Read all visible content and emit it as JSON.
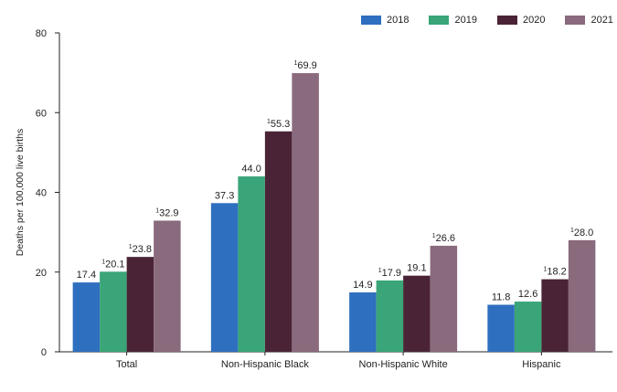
{
  "chart_data": {
    "type": "bar",
    "title": "",
    "xlabel": "",
    "ylabel": "Deaths per 100,000 live births",
    "ylim": [
      0,
      80
    ],
    "yticks": [
      0,
      20,
      40,
      60,
      80
    ],
    "grid": false,
    "legend_position": "top-right",
    "categories": [
      "Total",
      "Non-Hispanic Black",
      "Non-Hispanic White",
      "Hispanic"
    ],
    "series": [
      {
        "name": "2018",
        "color": "#2f6fbf",
        "values": [
          17.4,
          37.3,
          14.9,
          11.8
        ],
        "labels": [
          "17.4",
          "37.3",
          "14.9",
          "11.8"
        ],
        "marked": [
          false,
          false,
          false,
          false
        ]
      },
      {
        "name": "2019",
        "color": "#3aa578",
        "values": [
          20.1,
          44.0,
          17.9,
          12.6
        ],
        "labels": [
          "20.1",
          "44.0",
          "17.9",
          "12.6"
        ],
        "marked": [
          true,
          false,
          true,
          false
        ]
      },
      {
        "name": "2020",
        "color": "#4a2436",
        "values": [
          23.8,
          55.3,
          19.1,
          18.2
        ],
        "labels": [
          "23.8",
          "55.3",
          "19.1",
          "18.2"
        ],
        "marked": [
          true,
          true,
          false,
          true
        ]
      },
      {
        "name": "2021",
        "color": "#8a6a7d",
        "values": [
          32.9,
          69.9,
          26.6,
          28.0
        ],
        "labels": [
          "32.9",
          "69.9",
          "26.6",
          "28.0"
        ],
        "marked": [
          true,
          true,
          true,
          true
        ]
      }
    ],
    "footnote_marker": "1"
  }
}
